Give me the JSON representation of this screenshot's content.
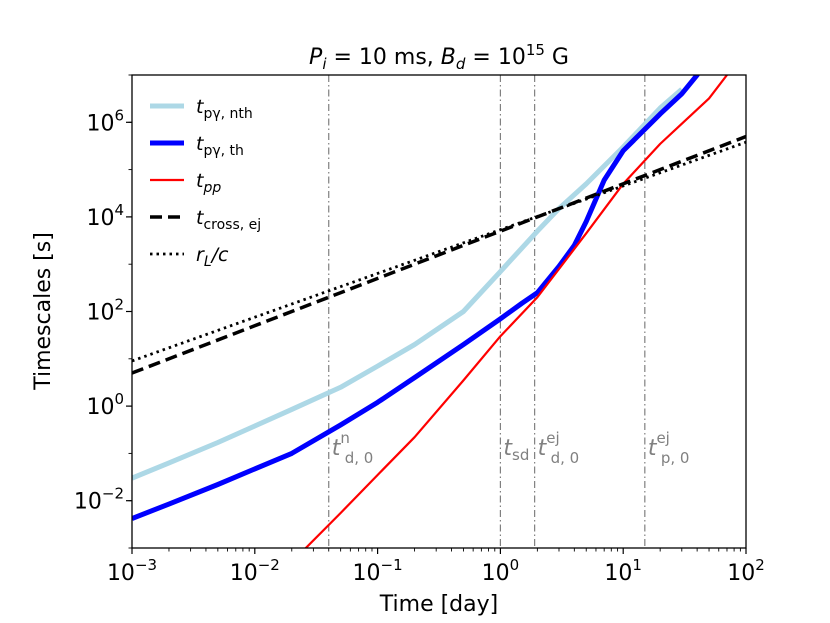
{
  "chart_data": {
    "type": "line",
    "title": "P_i = 10 ms, B_d = 10^15 G",
    "title_parts": {
      "p_sym": "P",
      "p_sub": "i",
      "p_val": " = 10 ms, ",
      "b_sym": "B",
      "b_sub": "d",
      "b_val": " = 10",
      "b_exp": "15",
      "b_unit": " G"
    },
    "xlabel": "Time [day]",
    "ylabel": "Timescales [s]",
    "xscale": "log",
    "yscale": "log",
    "xlim": [
      0.001,
      100
    ],
    "ylim": [
      0.001,
      10000000
    ],
    "x_ticks": [
      {
        "value": 0.001,
        "base": "10",
        "exp": "−3"
      },
      {
        "value": 0.01,
        "base": "10",
        "exp": "−2"
      },
      {
        "value": 0.1,
        "base": "10",
        "exp": "−1"
      },
      {
        "value": 1,
        "base": "10",
        "exp": "0"
      },
      {
        "value": 10,
        "base": "10",
        "exp": "1"
      },
      {
        "value": 100,
        "base": "10",
        "exp": "2"
      }
    ],
    "y_ticks": [
      {
        "value": 0.01,
        "base": "10",
        "exp": "−2"
      },
      {
        "value": 1,
        "base": "10",
        "exp": "0"
      },
      {
        "value": 100,
        "base": "10",
        "exp": "2"
      },
      {
        "value": 10000,
        "base": "10",
        "exp": "4"
      },
      {
        "value": 1000000,
        "base": "10",
        "exp": "6"
      }
    ],
    "series": [
      {
        "name": "t_pγ, nth",
        "sym": "t",
        "sub": "pγ, nth",
        "color": "#add8e6",
        "style": "solid-thick",
        "x": [
          0.001,
          0.002,
          0.005,
          0.01,
          0.02,
          0.05,
          0.1,
          0.2,
          0.5,
          1,
          2,
          3,
          5,
          10,
          20,
          30
        ],
        "y": [
          0.03,
          0.063,
          0.17,
          0.38,
          0.85,
          2.5,
          7,
          20,
          100,
          700,
          5000,
          15000,
          50000,
          300000,
          2000000,
          5000000
        ]
      },
      {
        "name": "t_pγ, th",
        "sym": "t",
        "sub": "pγ, th",
        "color": "#0000ff",
        "style": "solid-thick",
        "x": [
          0.001,
          0.002,
          0.005,
          0.01,
          0.02,
          0.05,
          0.1,
          0.2,
          0.5,
          1,
          1.5,
          2,
          3,
          4,
          5,
          7,
          10,
          20,
          30,
          40,
          50
        ],
        "y": [
          0.0042,
          0.0085,
          0.022,
          0.047,
          0.1,
          0.4,
          1.2,
          4,
          20,
          70,
          150,
          250,
          900,
          2500,
          8000,
          60000,
          250000,
          1500000,
          4000000,
          10000000,
          40000000
        ]
      },
      {
        "name": "t_pp",
        "sym": "t",
        "sub": "pp",
        "color": "#ff0000",
        "style": "solid",
        "x": [
          0.025,
          0.05,
          0.1,
          0.2,
          0.5,
          1,
          2,
          5,
          10,
          20,
          50,
          70
        ],
        "y": [
          0.0009,
          0.0055,
          0.035,
          0.22,
          3.5,
          30,
          200,
          4500,
          50000,
          350000,
          3200000,
          10000000
        ]
      },
      {
        "name": "t_cross, ej",
        "sym": "t",
        "sub": "cross, ej",
        "color": "#000000",
        "style": "dashed",
        "x": [
          0.001,
          100
        ],
        "y": [
          5,
          500000
        ]
      },
      {
        "name": "r_L/c",
        "sym": "r",
        "sub": "L",
        "suffix": "/c",
        "color": "#000000",
        "style": "dotted",
        "x": [
          0.001,
          100
        ],
        "y": [
          9,
          380000
        ]
      }
    ],
    "vlines": [
      {
        "x": 0.04,
        "sym": "t",
        "sup": "n",
        "sub": "d, 0"
      },
      {
        "x": 1.0,
        "sym": "t",
        "sup": "",
        "sub": "sd"
      },
      {
        "x": 1.9,
        "sym": "t",
        "sup": "ej",
        "sub": "d, 0"
      },
      {
        "x": 15,
        "sym": "t",
        "sup": "ej",
        "sub": "p, 0"
      }
    ],
    "vline_color": "#808080",
    "legend_position": "upper-left"
  }
}
